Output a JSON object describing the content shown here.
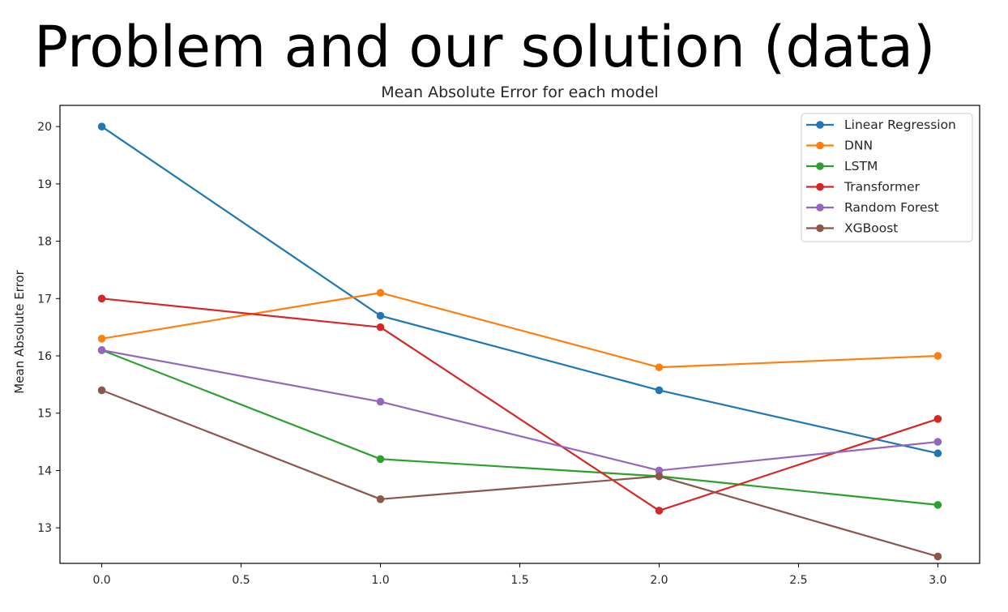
{
  "slide": {
    "title": "Problem and our solution (data)"
  },
  "chart_data": {
    "type": "line",
    "title": "Mean Absolute Error for each model",
    "xlabel": "",
    "ylabel": "Mean Absolute Error",
    "x": [
      0,
      1,
      2,
      3
    ],
    "xticks": [
      "0.0",
      "0.5",
      "1.0",
      "1.5",
      "2.0",
      "2.5",
      "3.0"
    ],
    "xtick_values": [
      0,
      0.5,
      1,
      1.5,
      2,
      2.5,
      3
    ],
    "yticks": [
      "13",
      "14",
      "15",
      "16",
      "17",
      "18",
      "19",
      "20"
    ],
    "ytick_values": [
      13,
      14,
      15,
      16,
      17,
      18,
      19,
      20
    ],
    "xlim": [
      -0.15,
      3.15
    ],
    "ylim": [
      12.38,
      20.37
    ],
    "grid": false,
    "legend_position": "top-right",
    "series": [
      {
        "name": "Linear Regression",
        "color": "#1f77b4",
        "values": [
          20.0,
          16.7,
          15.4,
          14.3
        ]
      },
      {
        "name": "DNN",
        "color": "#ff7f0e",
        "values": [
          16.3,
          17.1,
          15.8,
          16.0
        ]
      },
      {
        "name": "LSTM",
        "color": "#2ca02c",
        "values": [
          16.1,
          14.2,
          13.9,
          13.4
        ]
      },
      {
        "name": "Transformer",
        "color": "#d62728",
        "values": [
          17.0,
          16.5,
          13.3,
          14.9
        ]
      },
      {
        "name": "Random Forest",
        "color": "#9467bd",
        "values": [
          16.1,
          15.2,
          14.0,
          14.5
        ]
      },
      {
        "name": "XGBoost",
        "color": "#8c564b",
        "values": [
          15.4,
          13.5,
          13.9,
          12.5
        ]
      }
    ]
  }
}
